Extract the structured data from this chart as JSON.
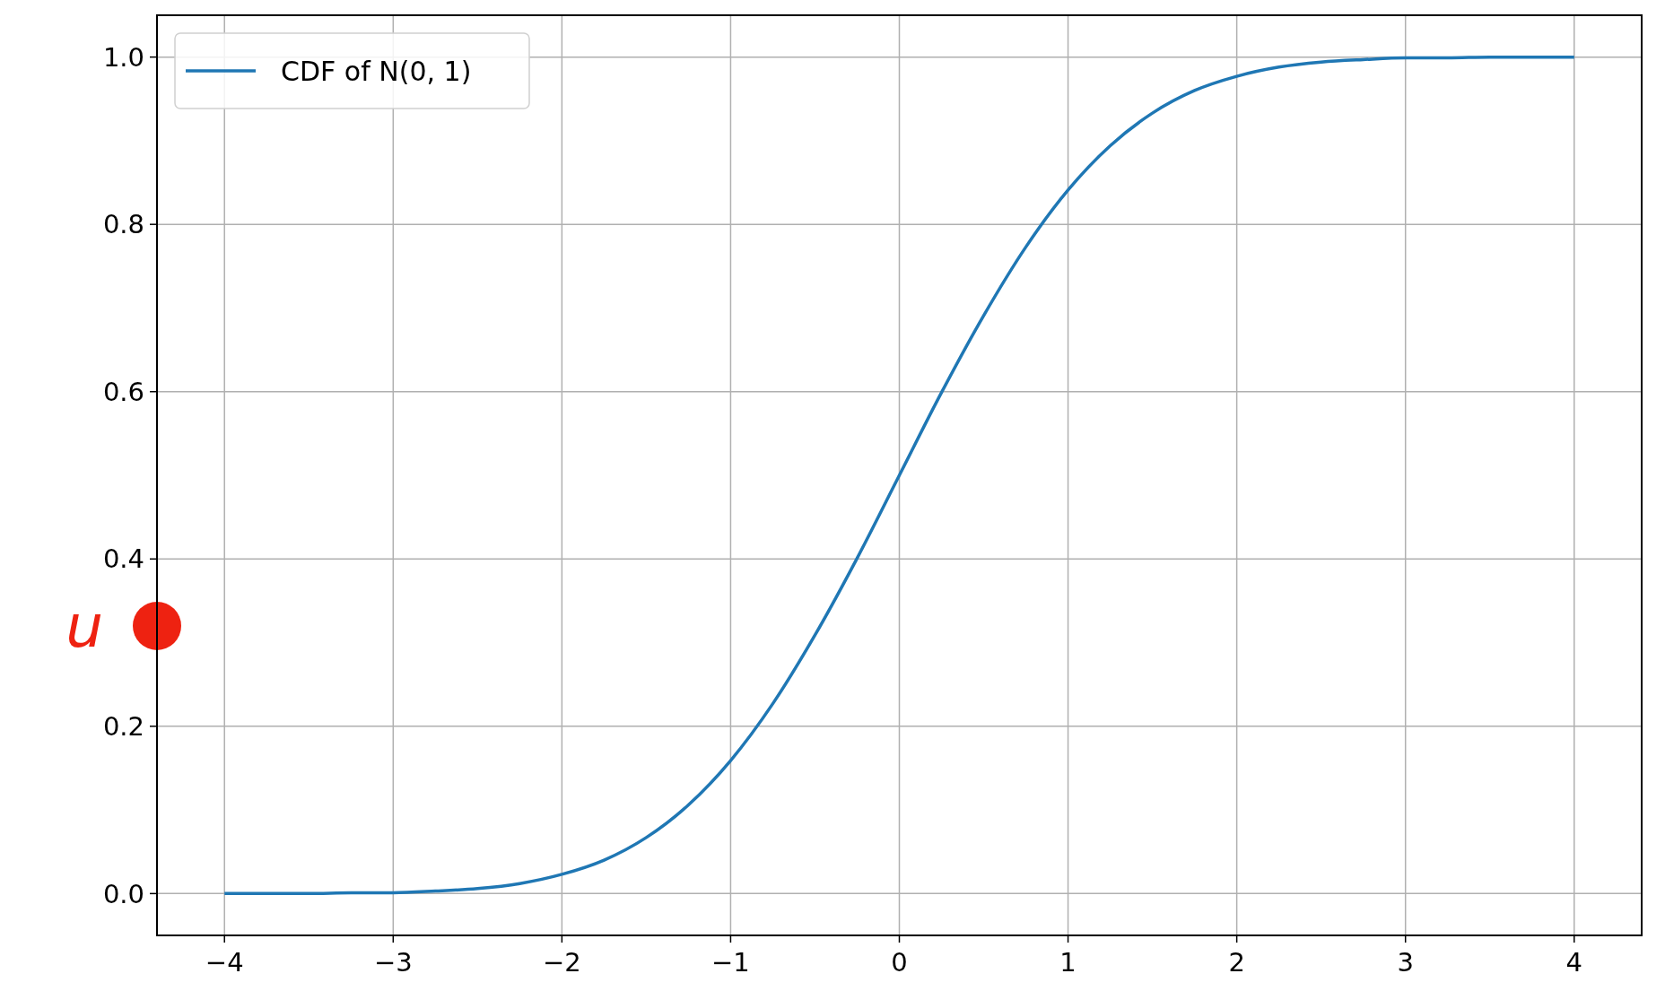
{
  "chart_data": {
    "type": "line",
    "x": [
      -4,
      -3.75,
      -3.5,
      -3.25,
      -3,
      -2.75,
      -2.5,
      -2.25,
      -2,
      -1.75,
      -1.5,
      -1.25,
      -1,
      -0.75,
      -0.5,
      -0.25,
      0,
      0.25,
      0.5,
      0.75,
      1,
      1.25,
      1.5,
      1.75,
      2,
      2.25,
      2.5,
      2.75,
      3,
      3.25,
      3.5,
      3.75,
      4
    ],
    "series": [
      {
        "name": "CDF of N(0, 1)",
        "color": "#1f77b4",
        "values": [
          0.0,
          0.0,
          0.0,
          0.001,
          0.001,
          0.003,
          0.006,
          0.012,
          0.023,
          0.04,
          0.067,
          0.106,
          0.159,
          0.227,
          0.309,
          0.401,
          0.5,
          0.599,
          0.691,
          0.773,
          0.841,
          0.894,
          0.933,
          0.96,
          0.977,
          0.988,
          0.994,
          0.997,
          0.999,
          0.999,
          1.0,
          1.0,
          1.0
        ]
      },
      {
        "type": "scatter",
        "color": "#ee2211",
        "x": [
          -4.4
        ],
        "values": [
          0.32
        ]
      }
    ],
    "annotations": [
      {
        "text": "u",
        "x": -4.4,
        "y": 0.32
      }
    ],
    "xlim": [
      -4.4,
      4.4
    ],
    "ylim": [
      -0.05,
      1.05
    ],
    "xticks": [
      {
        "value": -4,
        "label": "−4"
      },
      {
        "value": -3,
        "label": "−3"
      },
      {
        "value": -2,
        "label": "−2"
      },
      {
        "value": -1,
        "label": "−1"
      },
      0,
      1,
      2,
      3,
      4
    ],
    "yticks": [
      {
        "value": 0,
        "label": "0.0"
      },
      {
        "value": 0.2,
        "label": "0.2"
      },
      {
        "value": 0.4,
        "label": "0.4"
      },
      {
        "value": 0.6,
        "label": "0.6"
      },
      {
        "value": 0.8,
        "label": "0.8"
      },
      {
        "value": 1,
        "label": "1.0"
      }
    ],
    "grid": true,
    "legend": "top left",
    "line_style": "solid"
  }
}
